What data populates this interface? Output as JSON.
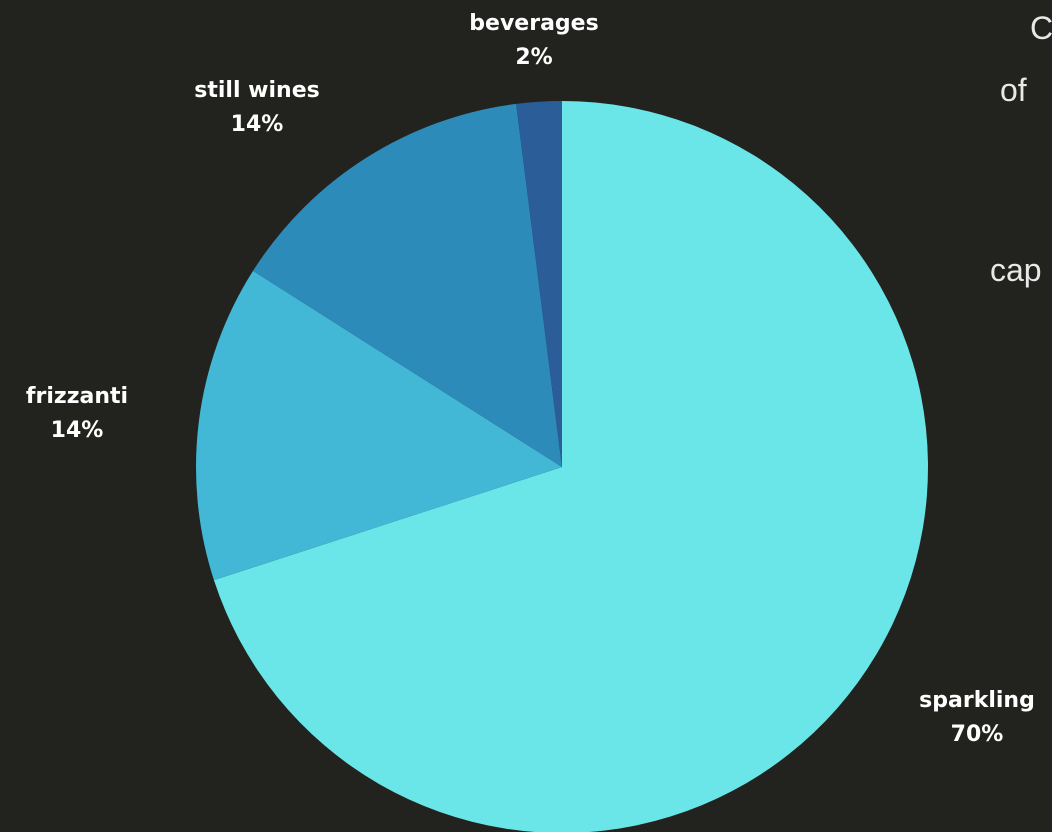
{
  "chart_data": {
    "type": "pie",
    "start_angle_deg": 0,
    "direction": "clockwise",
    "slices": [
      {
        "label": "sparkling",
        "value": 70,
        "value_label": "70%",
        "color": "#6ae5e8"
      },
      {
        "label": "frizzanti",
        "value": 14,
        "value_label": "14%",
        "color": "#42b7d6"
      },
      {
        "label": "still wines",
        "value": 14,
        "value_label": "14%",
        "color": "#2d8bba"
      },
      {
        "label": "beverages",
        "value": 2,
        "value_label": "2%",
        "color": "#2b5d99"
      }
    ]
  },
  "side_text": {
    "line1": "C",
    "line2": "of",
    "line3": "cap"
  }
}
